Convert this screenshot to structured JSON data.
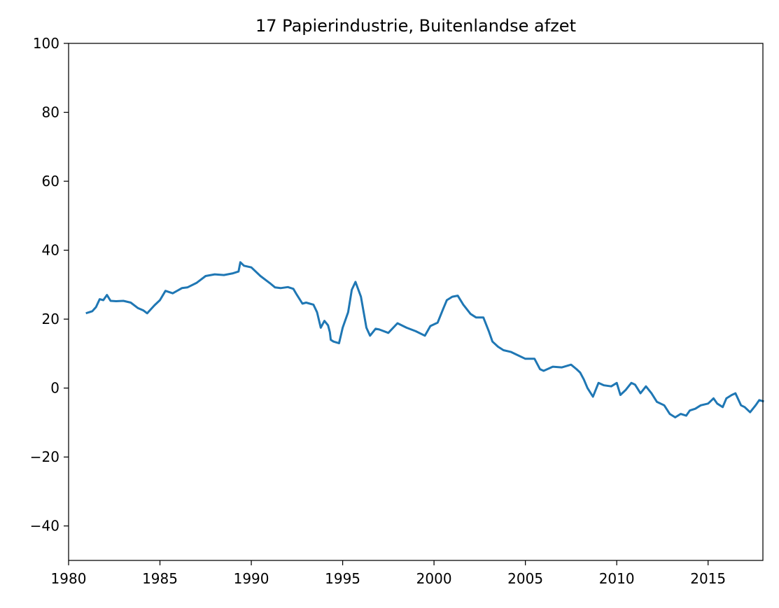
{
  "chart_data": {
    "type": "line",
    "title": "17 Papierindustrie, Buitenlandse afzet",
    "xlabel": "",
    "ylabel": "",
    "xlim": [
      1980,
      2018
    ],
    "ylim": [
      -50,
      100
    ],
    "x_ticks": [
      1980,
      1985,
      1990,
      1995,
      2000,
      2005,
      2010,
      2015
    ],
    "y_ticks": [
      -40,
      -20,
      0,
      20,
      40,
      60,
      80,
      100
    ],
    "y_tick_labels": [
      "−40",
      "−20",
      "0",
      "20",
      "40",
      "60",
      "80",
      "100"
    ],
    "grid": false,
    "line_color": "#1f77b4",
    "series": [
      {
        "x": [
          1981.0,
          1981.3,
          1981.5,
          1981.7,
          1981.9,
          1982.1,
          1982.3,
          1982.6,
          1983.0,
          1983.4,
          1983.8,
          1984.1,
          1984.3,
          1984.7,
          1985.0,
          1985.3,
          1985.7,
          1986.2,
          1986.5,
          1987.0,
          1987.5,
          1988.0,
          1988.5,
          1989.0,
          1989.3,
          1989.4,
          1989.6,
          1990.0,
          1990.5,
          1991.0,
          1991.3,
          1991.6,
          1992.0,
          1992.3,
          1992.5,
          1992.8,
          1993.0,
          1993.2,
          1993.4,
          1993.6,
          1993.8,
          1994.0,
          1994.2,
          1994.3,
          1994.35,
          1994.5,
          1994.8,
          1995.0,
          1995.3,
          1995.5,
          1995.7,
          1996.0,
          1996.3,
          1996.5,
          1996.8,
          1997.0,
          1997.5,
          1998.0,
          1998.5,
          1999.0,
          1999.5,
          1999.8,
          2000.2,
          2000.5,
          2000.7,
          2001.0,
          2001.3,
          2001.6,
          2002.0,
          2002.3,
          2002.7,
          2003.0,
          2003.2,
          2003.5,
          2003.8,
          2004.2,
          2004.6,
          2005.0,
          2005.5,
          2005.8,
          2006.0,
          2006.5,
          2007.0,
          2007.5,
          2007.8,
          2008.0,
          2008.2,
          2008.4,
          2008.7,
          2009.0,
          2009.3,
          2009.7,
          2010.0,
          2010.2,
          2010.5,
          2010.8,
          2011.0,
          2011.3,
          2011.6,
          2011.9,
          2012.2,
          2012.6,
          2012.9,
          2013.2,
          2013.5,
          2013.8,
          2014.0,
          2014.3,
          2014.6,
          2015.0,
          2015.3,
          2015.5,
          2015.8,
          2016.0,
          2016.3,
          2016.5,
          2016.8,
          2017.0,
          2017.3,
          2017.6,
          2017.8,
          2018.0
        ],
        "y": [
          21.8,
          22.3,
          23.5,
          25.8,
          25.5,
          27.0,
          25.3,
          25.2,
          25.3,
          24.8,
          23.2,
          22.5,
          21.7,
          24.0,
          25.5,
          28.2,
          27.5,
          29.0,
          29.2,
          30.5,
          32.5,
          33.0,
          32.8,
          33.3,
          33.8,
          36.5,
          35.5,
          35.0,
          32.5,
          30.5,
          29.2,
          29.0,
          29.3,
          28.8,
          27.0,
          24.5,
          24.8,
          24.5,
          24.2,
          22.0,
          17.5,
          19.5,
          18.2,
          16.2,
          14.0,
          13.5,
          13.0,
          17.5,
          22.0,
          28.5,
          30.8,
          26.5,
          17.5,
          15.2,
          17.2,
          17.0,
          16.0,
          18.8,
          17.5,
          16.5,
          15.2,
          18.0,
          19.0,
          23.0,
          25.5,
          26.5,
          26.8,
          24.2,
          21.5,
          20.5,
          20.5,
          16.5,
          13.5,
          12.0,
          11.0,
          10.5,
          9.5,
          8.5,
          8.5,
          5.5,
          5.0,
          6.2,
          6.0,
          6.8,
          5.5,
          4.5,
          2.5,
          0.0,
          -2.5,
          1.5,
          0.8,
          0.5,
          1.5,
          -2.0,
          -0.5,
          1.5,
          1.0,
          -1.5,
          0.5,
          -1.5,
          -4.0,
          -5.0,
          -7.5,
          -8.5,
          -7.5,
          -8.0,
          -6.5,
          -6.0,
          -5.0,
          -4.5,
          -3.0,
          -4.5,
          -5.5,
          -3.0,
          -2.0,
          -1.5,
          -5.0,
          -5.5,
          -7.0,
          -5.0,
          -3.5,
          -3.8
        ]
      }
    ]
  }
}
